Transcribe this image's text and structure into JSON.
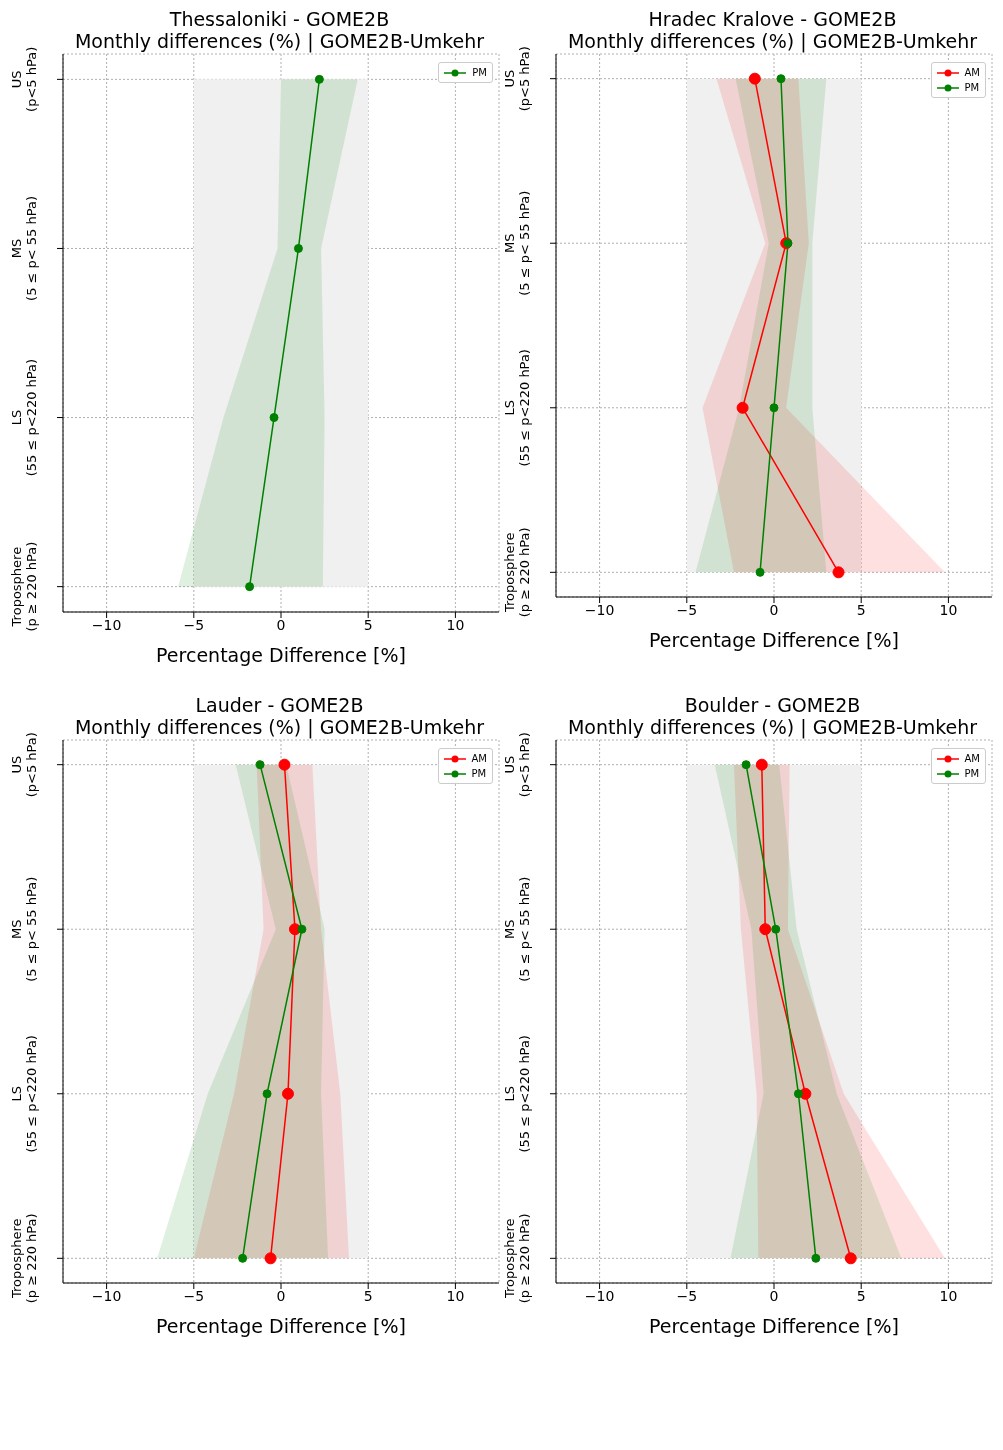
{
  "chart_data": [
    {
      "type": "line",
      "orientation": "horizontal",
      "title": "Thessaloniki - GOME2B",
      "subtitle": "Monthly differences (%) | GOME2B-Umkehr",
      "xlabel": "Percentage Difference [%]",
      "categories": [
        "US (p<5 hPa)",
        "MS (5 ≤ p< 55 hPa)",
        "LS (55 ≤ p<220 hPa)",
        "Troposphere (p ≥ 220 hPa)"
      ],
      "series": [
        {
          "name": "PM",
          "color": "#008000",
          "values": [
            2.2,
            1.0,
            -0.4,
            -1.8
          ],
          "lower": [
            0.0,
            -0.2,
            -3.3,
            -5.9
          ],
          "upper": [
            4.4,
            2.3,
            2.5,
            2.4
          ]
        }
      ],
      "xlim": [
        -12.5,
        12.5
      ],
      "xticks": [
        -10,
        -5,
        0,
        5,
        10
      ],
      "bands": [
        {
          "axis": "x",
          "from": -5,
          "to": 5,
          "color": "#f0f0f0"
        }
      ],
      "grid": true,
      "legend": "top right",
      "marker": "circle",
      "line_style": "solid"
    },
    {
      "type": "line",
      "orientation": "horizontal",
      "title": "Hradec Kralove - GOME2B",
      "subtitle": "Monthly differences (%) | GOME2B-Umkehr",
      "xlabel": "Percentage Difference [%]",
      "categories": [
        "US (p<5 hPa)",
        "MS (5 ≤ p< 55 hPa)",
        "LS (55 ≤ p<220 hPa)",
        "Troposphere (p ≥ 220 hPa)"
      ],
      "series": [
        {
          "name": "AM",
          "color": "#ff0000",
          "values": [
            -1.1,
            0.7,
            -1.8,
            3.7
          ],
          "lower": [
            -3.3,
            -0.5,
            -4.1,
            -2.3
          ],
          "upper": [
            1.4,
            2.0,
            0.7,
            9.8
          ]
        },
        {
          "name": "PM",
          "color": "#008000",
          "values": [
            0.4,
            0.8,
            0.0,
            -0.8
          ],
          "lower": [
            -2.2,
            -0.3,
            -2.0,
            -4.5
          ],
          "upper": [
            3.0,
            2.2,
            2.2,
            3.0
          ]
        }
      ],
      "xlim": [
        -12.5,
        12.5
      ],
      "xticks": [
        -10,
        -5,
        0,
        5,
        10
      ],
      "bands": [
        {
          "axis": "x",
          "from": -5,
          "to": 5,
          "color": "#f0f0f0"
        }
      ],
      "grid": true,
      "legend": "top right",
      "marker": "circle",
      "line_style": "solid"
    },
    {
      "type": "line",
      "orientation": "horizontal",
      "title": "Lauder - GOME2B",
      "subtitle": "Monthly differences (%) | GOME2B-Umkehr",
      "xlabel": "Percentage Difference [%]",
      "categories": [
        "US (p<5 hPa)",
        "MS (5 ≤ p< 55 hPa)",
        "LS (55 ≤ p<220 hPa)",
        "Troposphere (p ≥ 220 hPa)"
      ],
      "series": [
        {
          "name": "AM",
          "color": "#ff0000",
          "values": [
            0.2,
            0.8,
            0.4,
            -0.6
          ],
          "lower": [
            -1.4,
            -1.0,
            -2.7,
            -5.0
          ],
          "upper": [
            1.8,
            2.3,
            3.4,
            3.9
          ]
        },
        {
          "name": "PM",
          "color": "#008000",
          "values": [
            -1.2,
            1.2,
            -0.8,
            -2.2
          ],
          "lower": [
            -2.6,
            -0.3,
            -4.2,
            -7.1
          ],
          "upper": [
            0.3,
            2.5,
            2.3,
            2.7
          ]
        }
      ],
      "xlim": [
        -12.5,
        12.5
      ],
      "xticks": [
        -10,
        -5,
        0,
        5,
        10
      ],
      "bands": [
        {
          "axis": "x",
          "from": -5,
          "to": 5,
          "color": "#f0f0f0"
        }
      ],
      "grid": true,
      "legend": "top right",
      "marker": "circle",
      "line_style": "solid"
    },
    {
      "type": "line",
      "orientation": "horizontal",
      "title": "Boulder - GOME2B",
      "subtitle": "Monthly differences (%) | GOME2B-Umkehr",
      "xlabel": "Percentage Difference [%]",
      "categories": [
        "US (p<5 hPa)",
        "MS (5 ≤ p< 55 hPa)",
        "LS (55 ≤ p<220 hPa)",
        "Troposphere (p ≥ 220 hPa)"
      ],
      "series": [
        {
          "name": "AM",
          "color": "#ff0000",
          "values": [
            -0.7,
            -0.5,
            1.8,
            4.4
          ],
          "lower": [
            -2.3,
            -1.9,
            -1.0,
            -0.9
          ],
          "upper": [
            0.9,
            0.8,
            4.0,
            9.8
          ]
        },
        {
          "name": "PM",
          "color": "#008000",
          "values": [
            -1.6,
            0.1,
            1.4,
            2.4
          ],
          "lower": [
            -3.4,
            -1.3,
            -0.6,
            -2.5
          ],
          "upper": [
            0.3,
            1.3,
            3.6,
            7.3
          ]
        }
      ],
      "xlim": [
        -12.5,
        12.5
      ],
      "xticks": [
        -10,
        -5,
        0,
        5,
        10
      ],
      "bands": [
        {
          "axis": "x",
          "from": -5,
          "to": 5,
          "color": "#f0f0f0"
        }
      ],
      "grid": true,
      "legend": "top right",
      "marker": "circle",
      "line_style": "solid"
    }
  ]
}
